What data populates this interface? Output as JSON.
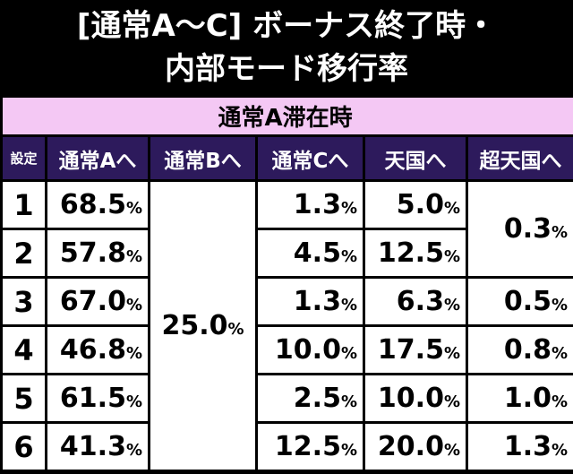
{
  "header": {
    "title_lines": [
      "[通常A〜C] ボーナス終了時・",
      "内部モード移行率"
    ]
  },
  "table": {
    "subtitle": "通常A滞在時",
    "headers": [
      "設定",
      "通常Aへ",
      "通常Bへ",
      "通常Cへ",
      "天国へ",
      "超天国へ"
    ],
    "rows": [
      [
        "1",
        "68.5%",
        "1.3%",
        "5.0%"
      ],
      [
        "2",
        "57.8%",
        "4.5%",
        "12.5%"
      ],
      [
        "3",
        "67.0%",
        "1.3%",
        "6.3%"
      ],
      [
        "4",
        "46.8%",
        "10.0%",
        "17.5%"
      ],
      [
        "5",
        "61.5%",
        "2.5%",
        "10.0%"
      ],
      [
        "6",
        "41.3%",
        "12.5%",
        "20.0%"
      ]
    ],
    "normal_b": "25.0%",
    "super_heaven": [
      "0.3%",
      "0.5%",
      "0.8%",
      "1.0%",
      "1.3%"
    ]
  }
}
